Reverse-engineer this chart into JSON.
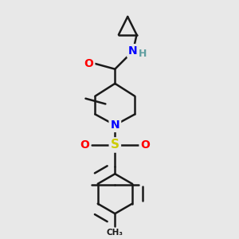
{
  "background_color": "#e8e8e8",
  "bond_color": "#1a1a1a",
  "bond_width": 1.8,
  "atom_colors": {
    "O": "#ff0000",
    "N": "#0000ff",
    "S": "#cccc00",
    "H": "#5f9ea0",
    "C": "#1a1a1a"
  },
  "figsize": [
    3.0,
    3.0
  ],
  "dpi": 100
}
